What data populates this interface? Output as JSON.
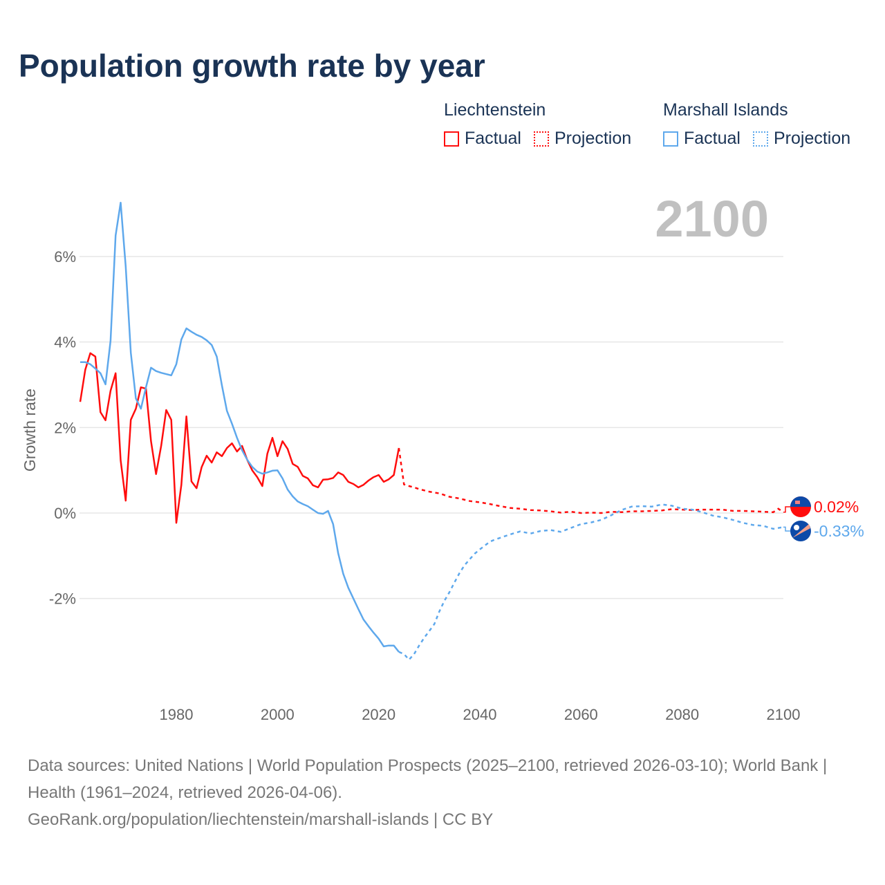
{
  "title": "Population growth rate by year",
  "legend": {
    "groups": [
      {
        "name": "Liechtenstein",
        "factual": "Factual",
        "projection": "Projection",
        "color": "#ff0d0d"
      },
      {
        "name": "Marshall Islands",
        "factual": "Factual",
        "projection": "Projection",
        "color": "#5ea8ec"
      }
    ]
  },
  "source": {
    "line1": "Data sources: United Nations | World Population Prospects (2025–2100, retrieved 2026-03-10); World Bank | Health (1961–2024, retrieved 2026-04-06).",
    "line2": "GeoRank.org/population/liechtenstein/marshall-islands | CC BY"
  },
  "chart_data": {
    "type": "line",
    "title": "Population growth rate by year",
    "ylabel": "Growth rate",
    "xlabel": "",
    "year_label": "2100",
    "xlim": [
      1961,
      2100
    ],
    "ylim": [
      -4.2,
      7.5
    ],
    "xticks": [
      1980,
      2000,
      2020,
      2040,
      2060,
      2080,
      2100
    ],
    "yticks": [
      -2,
      0,
      2,
      4,
      6
    ],
    "ytick_labels": [
      "-2%",
      "0%",
      "2%",
      "4%",
      "6%"
    ],
    "grid": true,
    "series": [
      {
        "name": "Liechtenstein",
        "color": "#ff0d0d",
        "end_label": "0.02%",
        "factual": {
          "x": [
            1961,
            1962,
            1963,
            1964,
            1965,
            1966,
            1967,
            1968,
            1969,
            1970,
            1971,
            1972,
            1973,
            1974,
            1975,
            1976,
            1977,
            1978,
            1979,
            1980,
            1981,
            1982,
            1983,
            1984,
            1985,
            1986,
            1987,
            1988,
            1989,
            1990,
            1991,
            1992,
            1993,
            1994,
            1995,
            1996,
            1997,
            1998,
            1999,
            2000,
            2001,
            2002,
            2003,
            2004,
            2005,
            2006,
            2007,
            2008,
            2009,
            2010,
            2011,
            2012,
            2013,
            2014,
            2015,
            2016,
            2017,
            2018,
            2019,
            2020,
            2021,
            2022,
            2023,
            2024
          ],
          "y": [
            2.6,
            3.35,
            3.74,
            3.66,
            2.36,
            2.17,
            2.86,
            3.27,
            1.23,
            0.29,
            2.18,
            2.44,
            2.94,
            2.91,
            1.68,
            0.91,
            1.57,
            2.41,
            2.18,
            -0.23,
            0.66,
            2.26,
            0.74,
            0.58,
            1.07,
            1.34,
            1.18,
            1.42,
            1.33,
            1.52,
            1.63,
            1.44,
            1.57,
            1.25,
            1.0,
            0.84,
            0.63,
            1.39,
            1.76,
            1.33,
            1.68,
            1.5,
            1.15,
            1.08,
            0.87,
            0.81,
            0.65,
            0.6,
            0.78,
            0.79,
            0.82,
            0.95,
            0.89,
            0.73,
            0.68,
            0.6,
            0.66,
            0.76,
            0.84,
            0.89,
            0.73,
            0.79,
            0.89,
            1.52
          ]
        },
        "projection": {
          "x": [
            2024,
            2025,
            2026,
            2027,
            2028,
            2030,
            2032,
            2034,
            2036,
            2038,
            2040,
            2042,
            2044,
            2046,
            2048,
            2050,
            2052,
            2054,
            2056,
            2058,
            2060,
            2062,
            2064,
            2066,
            2068,
            2070,
            2072,
            2074,
            2076,
            2078,
            2080,
            2082,
            2084,
            2086,
            2088,
            2090,
            2092,
            2094,
            2096,
            2098,
            2099,
            2100
          ],
          "y": [
            1.52,
            0.67,
            0.63,
            0.6,
            0.56,
            0.5,
            0.46,
            0.38,
            0.34,
            0.28,
            0.25,
            0.21,
            0.16,
            0.12,
            0.1,
            0.07,
            0.06,
            0.04,
            0.01,
            0.03,
            0.0,
            0.01,
            0.0,
            0.03,
            0.02,
            0.04,
            0.04,
            0.05,
            0.06,
            0.09,
            0.08,
            0.07,
            0.08,
            0.08,
            0.08,
            0.05,
            0.05,
            0.04,
            0.03,
            0.02,
            0.1,
            0.02
          ]
        }
      },
      {
        "name": "Marshall Islands",
        "color": "#5ea8ec",
        "end_label": "-0.33%",
        "factual": {
          "x": [
            1961,
            1962,
            1963,
            1964,
            1965,
            1966,
            1967,
            1968,
            1969,
            1970,
            1971,
            1972,
            1973,
            1974,
            1975,
            1976,
            1977,
            1978,
            1979,
            1980,
            1981,
            1982,
            1983,
            1984,
            1985,
            1986,
            1987,
            1988,
            1989,
            1990,
            1991,
            1992,
            1993,
            1994,
            1995,
            1996,
            1997,
            1998,
            1999,
            2000,
            2001,
            2002,
            2003,
            2004,
            2005,
            2006,
            2007,
            2008,
            2009,
            2010,
            2011,
            2012,
            2013,
            2014,
            2015,
            2016,
            2017,
            2018,
            2019,
            2020,
            2021,
            2022,
            2023,
            2024
          ],
          "y": [
            3.53,
            3.53,
            3.48,
            3.38,
            3.27,
            3.01,
            4.03,
            6.49,
            7.26,
            5.77,
            3.75,
            2.68,
            2.44,
            2.94,
            3.4,
            3.32,
            3.28,
            3.25,
            3.22,
            3.48,
            4.06,
            4.32,
            4.24,
            4.17,
            4.12,
            4.04,
            3.93,
            3.66,
            2.99,
            2.39,
            2.09,
            1.76,
            1.47,
            1.25,
            1.08,
            0.97,
            0.92,
            0.95,
            0.99,
            1.0,
            0.81,
            0.55,
            0.39,
            0.27,
            0.21,
            0.16,
            0.08,
            0.0,
            -0.02,
            0.05,
            -0.26,
            -0.94,
            -1.42,
            -1.75,
            -2.0,
            -2.25,
            -2.49,
            -2.65,
            -2.8,
            -2.94,
            -3.12,
            -3.1,
            -3.1,
            -3.25
          ]
        },
        "projection": {
          "x": [
            2024,
            2025,
            2026,
            2027,
            2028,
            2029,
            2030,
            2031,
            2032,
            2033,
            2034,
            2035,
            2036,
            2037,
            2038,
            2039,
            2040,
            2041,
            2042,
            2043,
            2044,
            2046,
            2048,
            2050,
            2052,
            2054,
            2056,
            2058,
            2060,
            2062,
            2064,
            2066,
            2068,
            2070,
            2072,
            2074,
            2076,
            2078,
            2080,
            2082,
            2084,
            2086,
            2088,
            2090,
            2092,
            2094,
            2096,
            2098,
            2099,
            2100
          ],
          "y": [
            -3.25,
            -3.3,
            -3.43,
            -3.3,
            -3.1,
            -2.92,
            -2.76,
            -2.6,
            -2.3,
            -2.05,
            -1.85,
            -1.62,
            -1.4,
            -1.22,
            -1.08,
            -0.95,
            -0.85,
            -0.76,
            -0.67,
            -0.62,
            -0.58,
            -0.5,
            -0.43,
            -0.48,
            -0.42,
            -0.4,
            -0.44,
            -0.35,
            -0.26,
            -0.22,
            -0.16,
            -0.05,
            0.07,
            0.15,
            0.16,
            0.15,
            0.2,
            0.17,
            0.1,
            0.08,
            0.02,
            -0.06,
            -0.1,
            -0.16,
            -0.23,
            -0.28,
            -0.3,
            -0.37,
            -0.35,
            -0.33
          ]
        }
      }
    ]
  }
}
